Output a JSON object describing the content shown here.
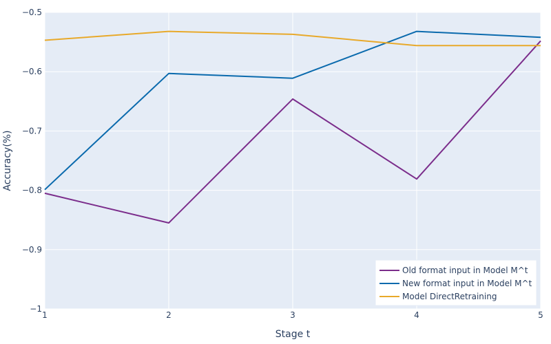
{
  "chart_data": {
    "type": "line",
    "title": "",
    "xlabel": "Stage t",
    "ylabel": "Accuracy(%)",
    "x": [
      1,
      2,
      3,
      4,
      5
    ],
    "xlim": [
      1,
      5
    ],
    "ylim": [
      -1,
      -0.5
    ],
    "xticks": [
      "1",
      "2",
      "3",
      "4",
      "5"
    ],
    "yticks": [
      -1,
      -0.9,
      -0.8,
      -0.7,
      -0.6,
      -0.5
    ],
    "ytick_labels": [
      "−1",
      "−0.9",
      "−0.8",
      "−0.7",
      "−0.6",
      "−0.5"
    ],
    "grid": true,
    "legend_position": "bottom-right",
    "series": [
      {
        "name": "Old format input in Model M^t",
        "color": "#7b2d8b",
        "values": [
          -0.805,
          -0.855,
          -0.646,
          -0.781,
          -0.548
        ]
      },
      {
        "name": "New format input in Model M^t",
        "color": "#0a6aad",
        "values": [
          -0.799,
          -0.603,
          -0.611,
          -0.532,
          -0.542
        ]
      },
      {
        "name": "Model DirectRetraining",
        "color": "#e8a92a",
        "values": [
          -0.547,
          -0.532,
          -0.537,
          -0.556,
          -0.556
        ]
      }
    ]
  }
}
